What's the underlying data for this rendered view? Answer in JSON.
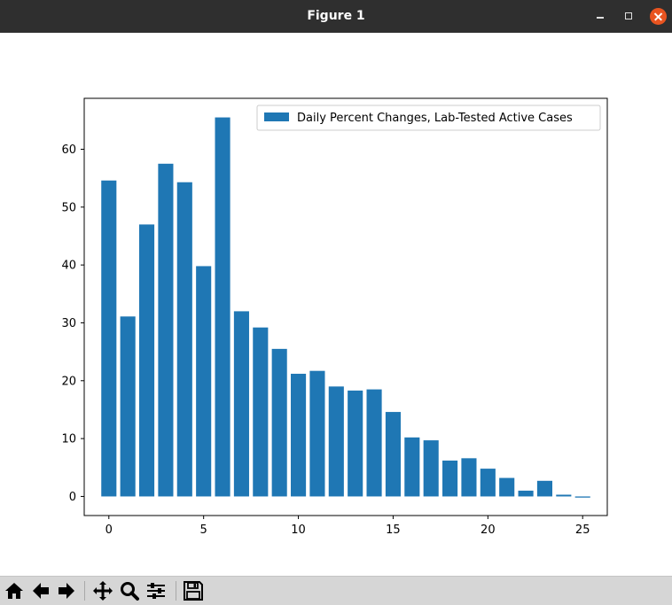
{
  "window": {
    "title": "Figure 1"
  },
  "toolbar": {
    "buttons": [
      "home-icon",
      "back-icon",
      "forward-icon",
      "pan-icon",
      "zoom-icon",
      "configure-subplots-icon",
      "save-icon"
    ]
  },
  "chart_data": {
    "type": "bar",
    "x": [
      0,
      1,
      2,
      3,
      4,
      5,
      6,
      7,
      8,
      9,
      10,
      11,
      12,
      13,
      14,
      15,
      16,
      17,
      18,
      19,
      20,
      21,
      22,
      23,
      24,
      25
    ],
    "series": [
      {
        "name": "Daily Percent Changes, Lab-Tested Active Cases",
        "color": "#1f77b4",
        "values": [
          54.6,
          31.1,
          47.0,
          57.5,
          54.3,
          39.8,
          65.5,
          32.0,
          29.2,
          25.5,
          21.2,
          21.7,
          19.0,
          18.3,
          18.5,
          14.6,
          10.2,
          9.7,
          6.2,
          6.6,
          4.8,
          3.2,
          1.0,
          2.7,
          0.3,
          -0.2
        ]
      }
    ],
    "xticks": [
      0,
      5,
      10,
      15,
      20,
      25
    ],
    "yticks": [
      0,
      10,
      20,
      30,
      40,
      50,
      60
    ],
    "xlim": [
      -1.3,
      26.3
    ],
    "ylim": [
      -3.3,
      68.8
    ],
    "grid": false,
    "legend": "top-right",
    "title": "",
    "xlabel": "",
    "ylabel": ""
  }
}
